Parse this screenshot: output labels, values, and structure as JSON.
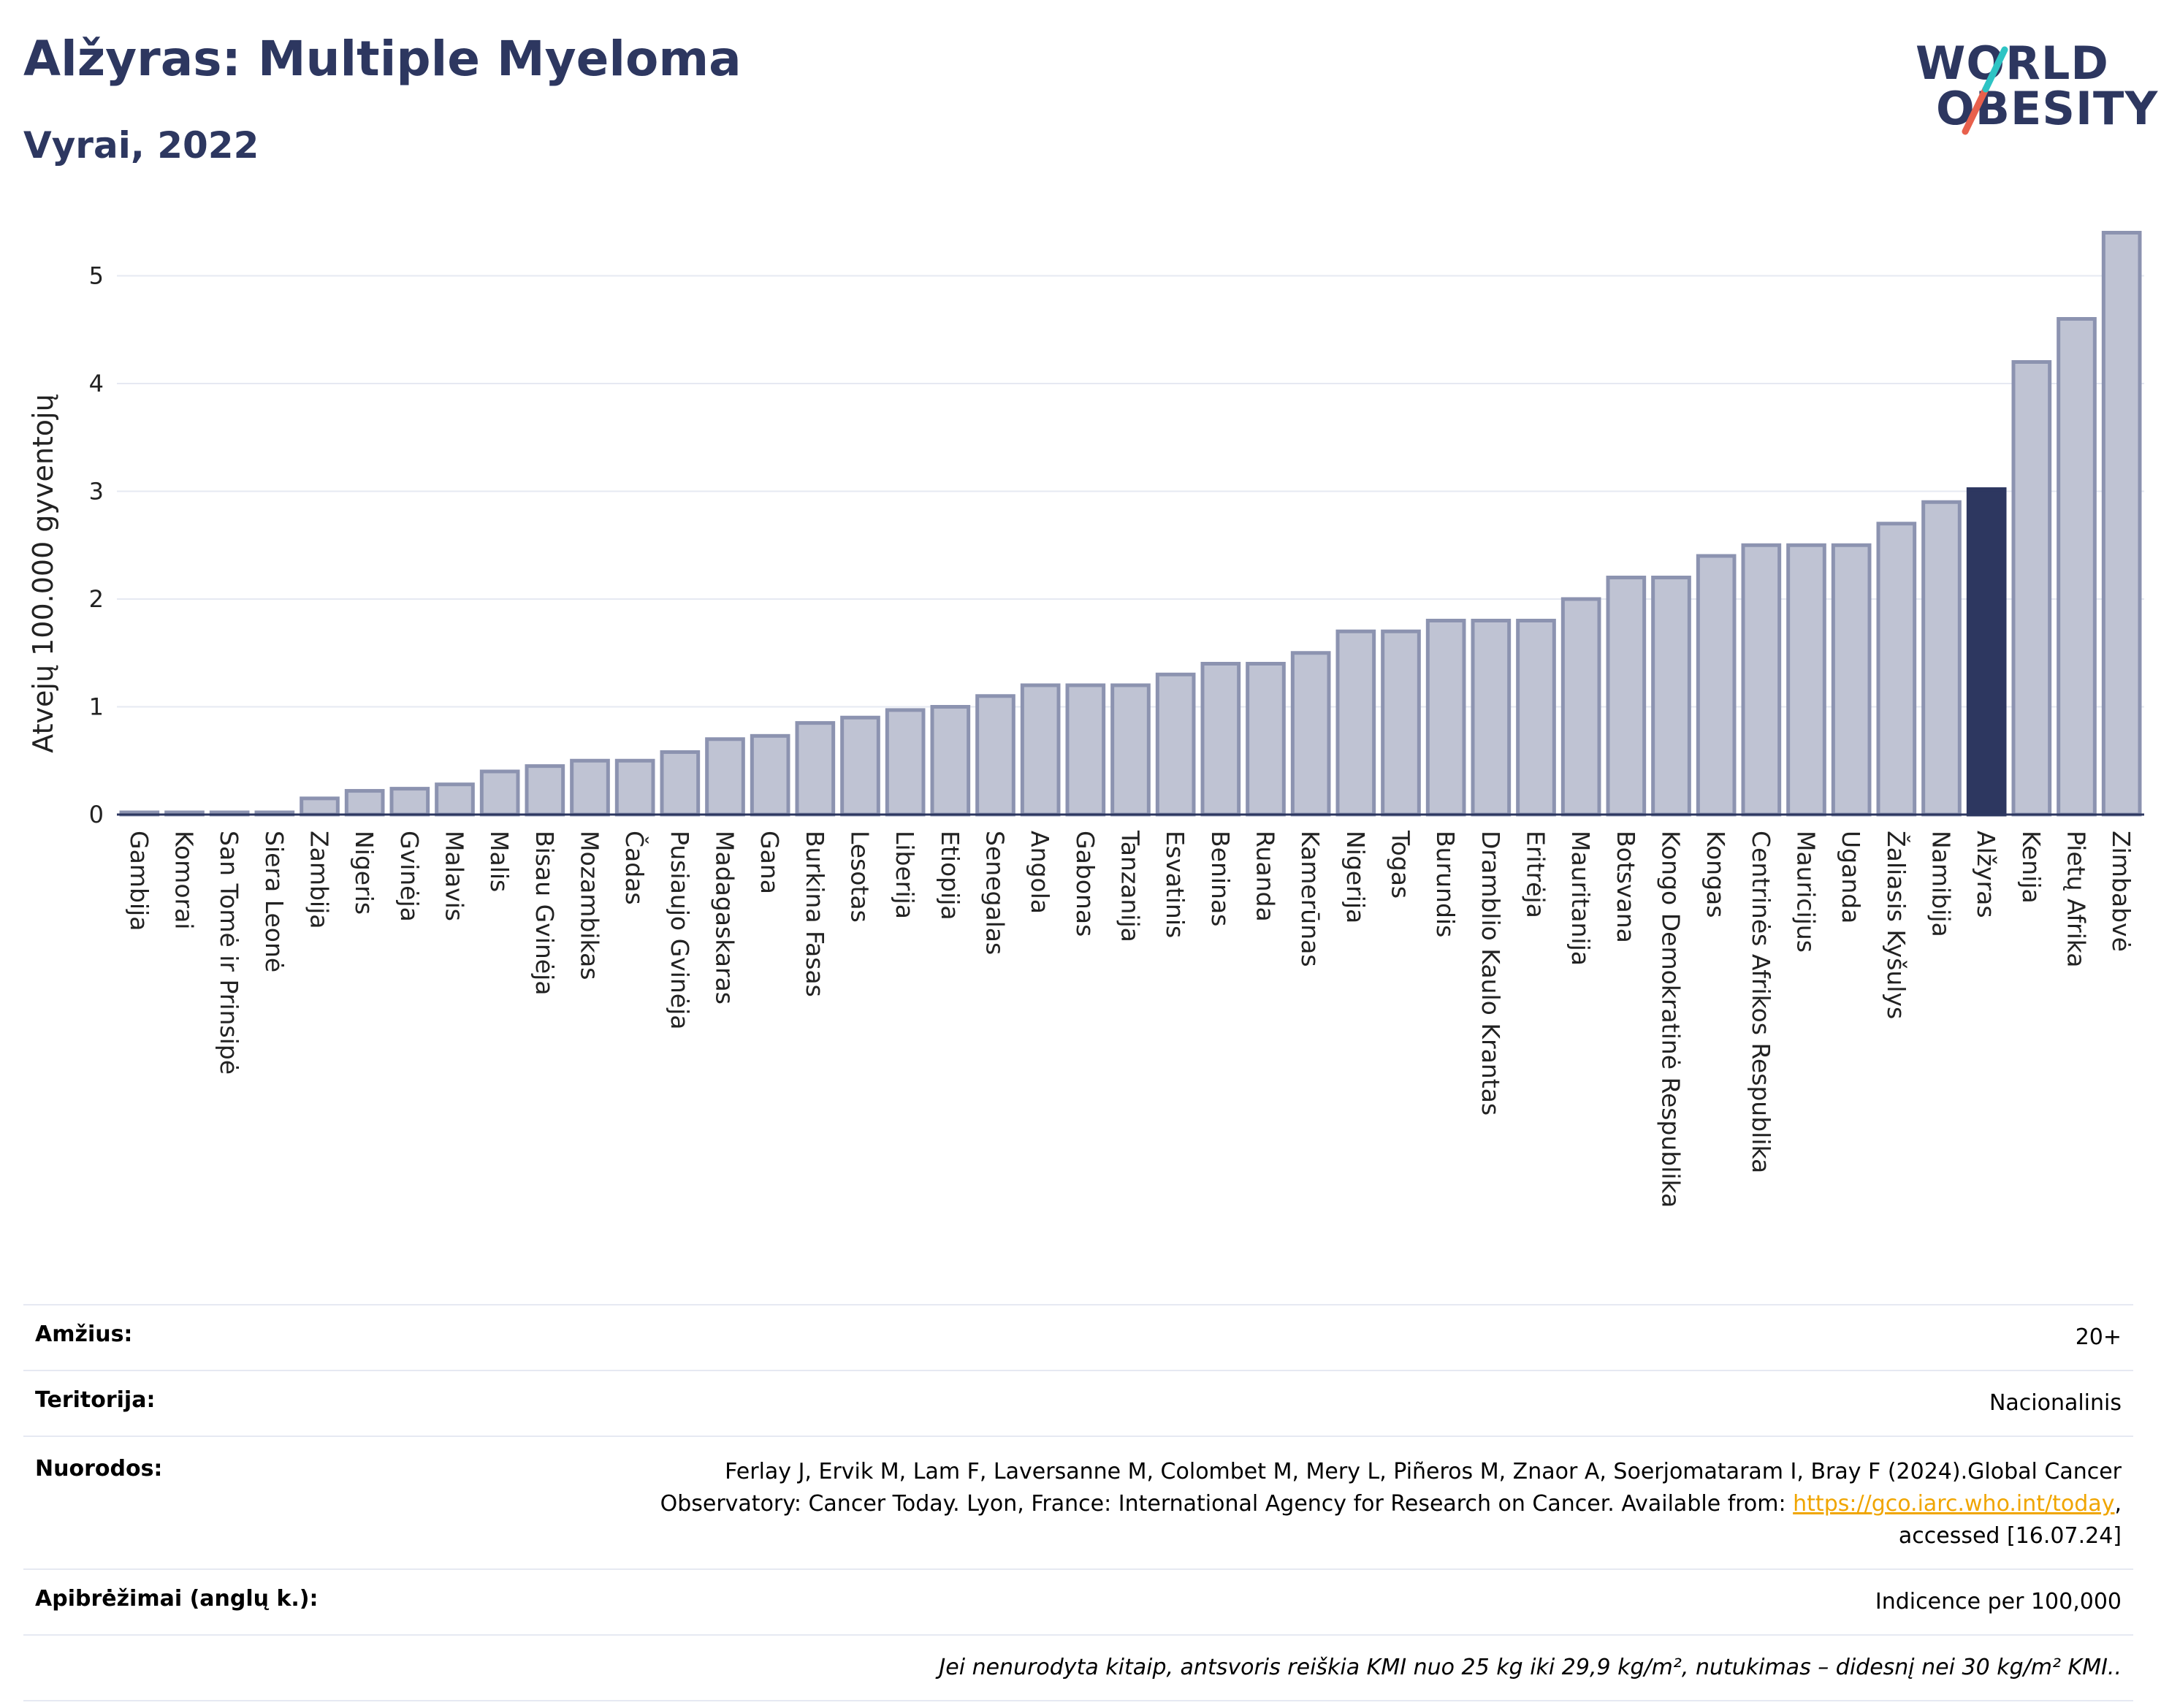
{
  "header": {
    "title": "Alžyras: Multiple Myeloma",
    "subtitle": "Vyrai, 2022"
  },
  "logo": {
    "line1": "WORLD",
    "line2": "OBESITY",
    "slash_colors": [
      "#2ec4c4",
      "#e8604c"
    ]
  },
  "colors": {
    "bar": "#bfc3d3",
    "bar_stroke": "#8c93b0",
    "highlight": "#2d3760",
    "grid": "#e6e9f2",
    "axis": "#2d3760"
  },
  "chart_data": {
    "type": "bar",
    "ylabel": "Atvejų 100.000 gyventojų",
    "ylim": [
      0,
      5.5
    ],
    "yticks": [
      0,
      1,
      2,
      3,
      4,
      5
    ],
    "highlight": "Alžyras",
    "categories": [
      "Gambija",
      "Komorai",
      "San Tomė ir Prinsipė",
      "Siera Leonė",
      "Zambija",
      "Nigeris",
      "Gvinėja",
      "Malavis",
      "Malis",
      "Bisau Gvinėja",
      "Mozambikas",
      "Čadas",
      "Pusiaujo Gvinėja",
      "Madagaskaras",
      "Gana",
      "Burkina Fasas",
      "Lesotas",
      "Liberija",
      "Etiopija",
      "Senegalas",
      "Angola",
      "Gabonas",
      "Tanzanija",
      "Esvatinis",
      "Beninas",
      "Ruanda",
      "Kamerūnas",
      "Nigerija",
      "Togas",
      "Burundis",
      "Dramblio Kaulo Krantas",
      "Eritrėja",
      "Mauritanija",
      "Botsvana",
      "Kongo Demokratinė Respublika",
      "Kongas",
      "Centrinės Afrikos Respublika",
      "Mauricijus",
      "Uganda",
      "Žaliasis Kyšulys",
      "Namibija",
      "Alžyras",
      "Kenija",
      "Pietų Afrika",
      "Zimbabvė"
    ],
    "values": [
      0.02,
      0.02,
      0.02,
      0.02,
      0.15,
      0.22,
      0.24,
      0.28,
      0.4,
      0.45,
      0.5,
      0.5,
      0.58,
      0.7,
      0.73,
      0.85,
      0.9,
      0.97,
      1.0,
      1.1,
      1.2,
      1.2,
      1.2,
      1.3,
      1.4,
      1.4,
      1.5,
      1.7,
      1.7,
      1.8,
      1.8,
      1.8,
      2.0,
      2.2,
      2.2,
      2.4,
      2.5,
      2.5,
      2.5,
      2.7,
      2.9,
      3.02,
      4.2,
      4.6,
      5.4
    ]
  },
  "info": {
    "age_label": "Amžius:",
    "age_value": "20+",
    "territory_label": "Teritorija:",
    "territory_value": "Nacionalinis",
    "refs_label": "Nuorodos:",
    "refs_text_1": "Ferlay J, Ervik M, Lam F, Laversanne M, Colombet M, Mery L, Piñeros M, Znaor A, Soerjomataram I, Bray F (2024).Global Cancer Observatory: Cancer Today. Lyon, France: International Agency for Research on Cancer. Available from: ",
    "refs_link": "https://gco.iarc.who.int/today",
    "refs_text_2": ", accessed [16.07.24]",
    "def_label": "Apibrėžimai (anglų k.):",
    "def_value": "Indicence per 100,000",
    "note": "Jei nenurodyta kitaip, antsvoris reiškia KMI nuo 25 kg iki 29,9 kg/m², nutukimas – didesnį nei 30 kg/m² KMI.."
  }
}
